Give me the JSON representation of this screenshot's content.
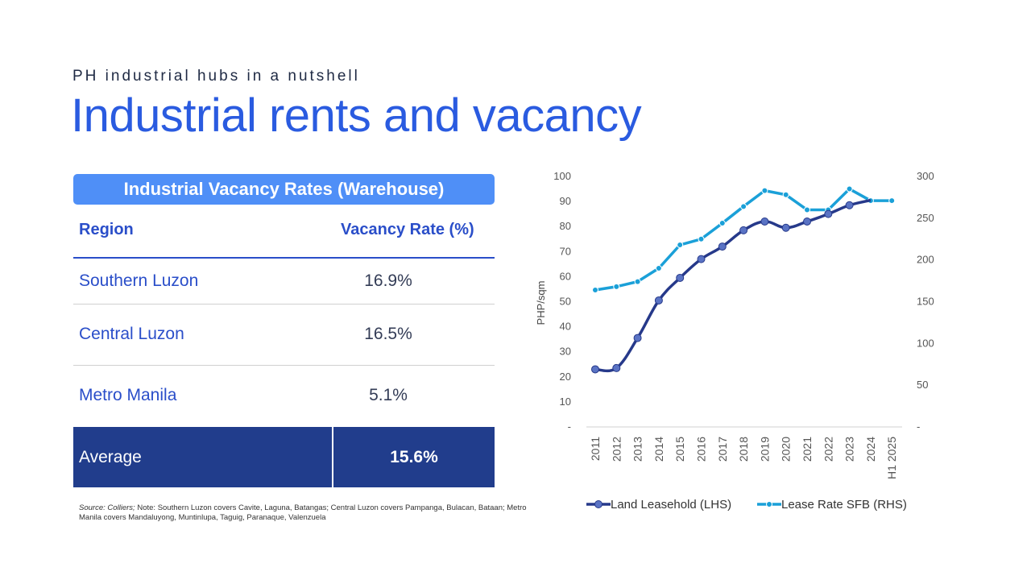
{
  "header": {
    "subtitle": "PH industrial hubs in a nutshell",
    "title": "Industrial rents and vacancy"
  },
  "table": {
    "title": "Industrial Vacancy Rates (Warehouse)",
    "col_region": "Region",
    "col_rate": "Vacancy Rate (%)",
    "rows": [
      {
        "region": "Southern Luzon",
        "rate": "16.9%"
      },
      {
        "region": "Central Luzon",
        "rate": "16.5%"
      },
      {
        "region": "Metro Manila",
        "rate": "5.1%"
      }
    ],
    "average_label": "Average",
    "average_value": "15.6%"
  },
  "note": {
    "source": "Source: Colliers;",
    "text": " Note: Southern Luzon covers Cavite, Laguna, Batangas; Central Luzon covers Pampanga, Bulacan, Bataan; Metro Manila covers Mandaluyong, Muntinlupa, Taguig, Paranaque, Valenzuela"
  },
  "colors": {
    "title_blue": "#2a5be0",
    "table_header": "#4f8ff7",
    "average_row": "#213d8c",
    "land_series": "#26398a",
    "land_marker": "#5a73c4",
    "lease_series": "#1aa0d8"
  },
  "chart_data": {
    "type": "line",
    "categories": [
      "2011",
      "2012",
      "2013",
      "2014",
      "2015",
      "2016",
      "2017",
      "2018",
      "2019",
      "2020",
      "2021",
      "2022",
      "2023",
      "2024",
      "H1 2025"
    ],
    "left_axis": {
      "label": "PHP/sqm",
      "ticks": [
        "-",
        "10",
        "20",
        "30",
        "40",
        "50",
        "60",
        "70",
        "80",
        "90",
        "100"
      ],
      "range": [
        0,
        100
      ]
    },
    "right_axis": {
      "label": "PHP/sqm",
      "ticks": [
        "-",
        "50",
        "100",
        "150",
        "200",
        "250",
        "300"
      ],
      "range": [
        0,
        300
      ]
    },
    "series": [
      {
        "name": "Land Leasehold (LHS)",
        "axis": "left",
        "color": "#26398a",
        "values": [
          23,
          23.5,
          35.5,
          50.5,
          59.5,
          67,
          72,
          78.5,
          82,
          79.5,
          82,
          85,
          88.5,
          90.5,
          null
        ]
      },
      {
        "name": "Lease Rate SFB (RHS)",
        "axis": "right",
        "color": "#1aa0d8",
        "values": [
          164,
          168,
          174,
          190,
          218,
          225,
          244,
          264,
          283,
          278,
          260,
          260,
          285,
          271,
          271
        ]
      }
    ],
    "legend_position": "bottom",
    "grid": false
  }
}
